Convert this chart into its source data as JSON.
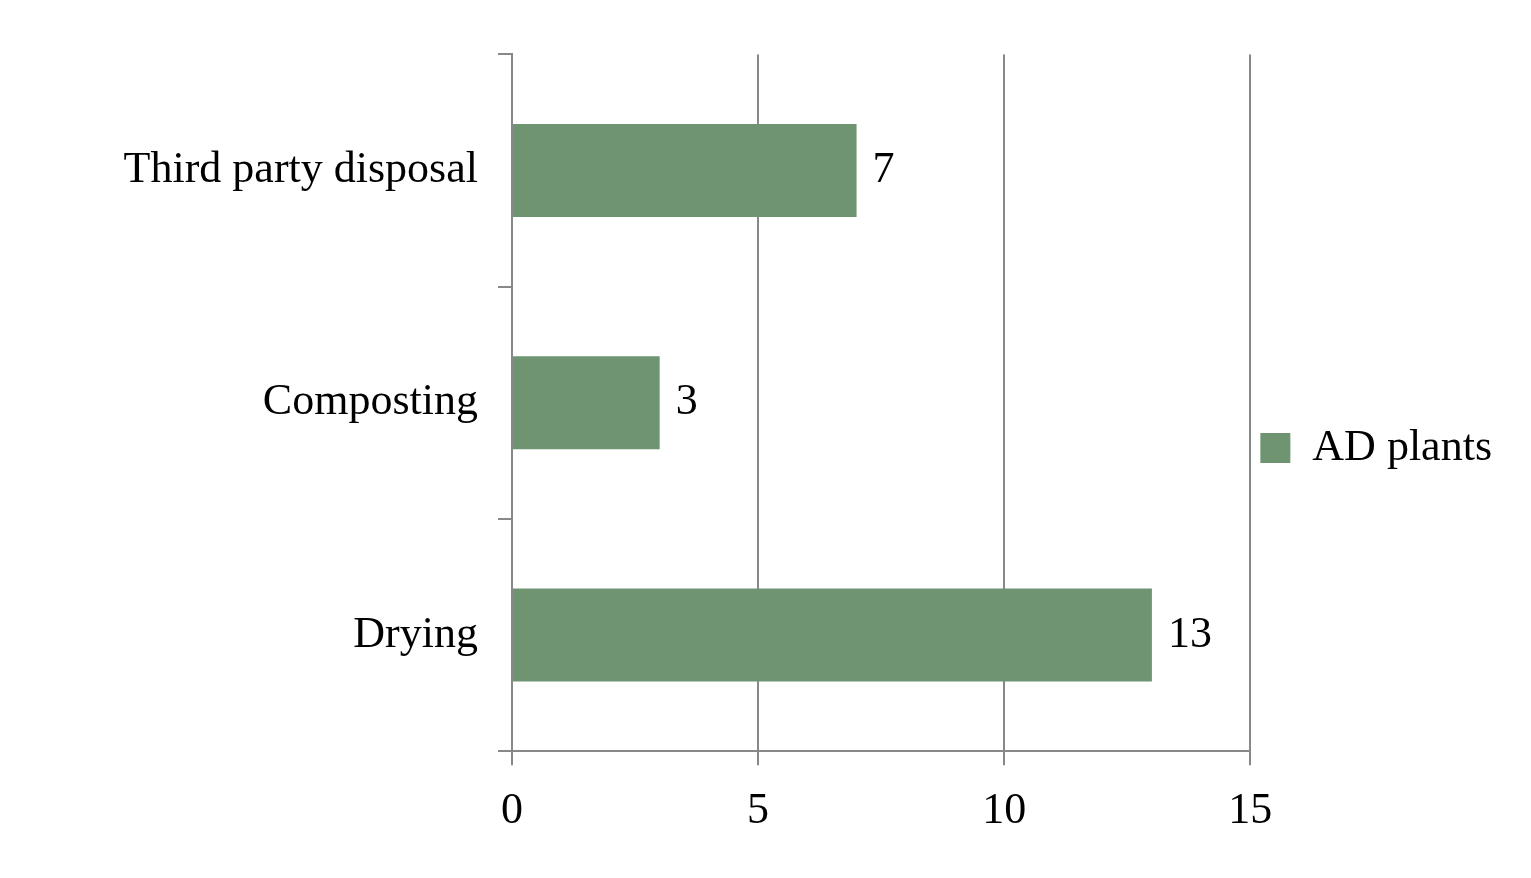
{
  "chart_data": {
    "type": "bar",
    "orientation": "horizontal",
    "categories": [
      "Third party disposal",
      "Composting",
      "Drying"
    ],
    "series": [
      {
        "name": "AD plants",
        "color": "#6f9472",
        "values": [
          7,
          3,
          13
        ]
      }
    ],
    "xlim": [
      0,
      15
    ],
    "xticks": [
      0,
      5,
      10,
      15
    ],
    "grid": "x",
    "legend": "right",
    "data_labels": true
  }
}
